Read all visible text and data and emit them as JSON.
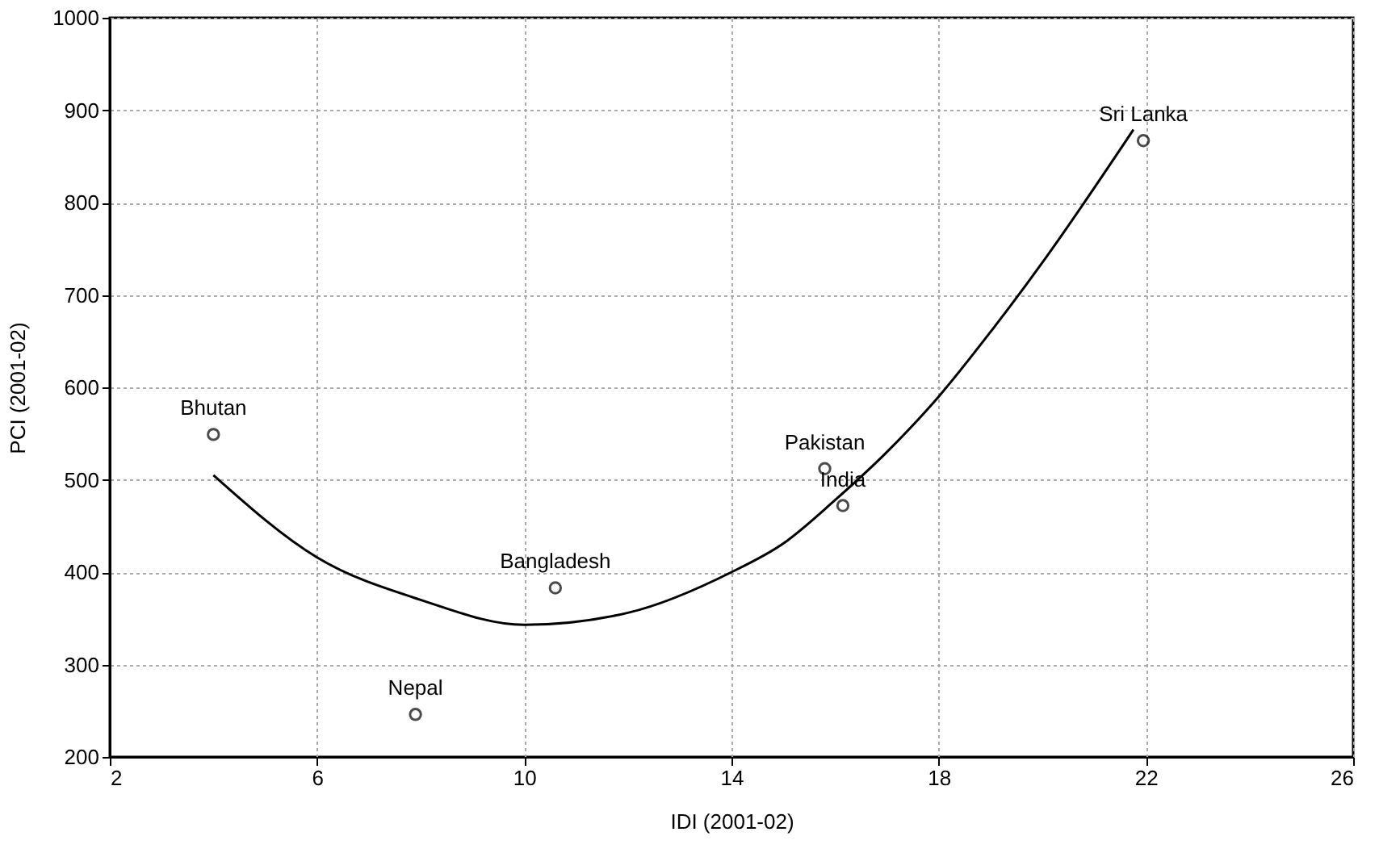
{
  "chart_data": {
    "type": "scatter",
    "xlabel": "IDI (2001-02)",
    "ylabel": "PCI (2001-02)",
    "xlim": [
      2,
      26
    ],
    "xticks": [
      2,
      6,
      10,
      14,
      18,
      22,
      26
    ],
    "ylim": [
      200,
      1000
    ],
    "yticks": [
      200,
      300,
      400,
      500,
      600,
      700,
      800,
      900,
      1000
    ],
    "grid": true,
    "series": [
      {
        "color": "#000000",
        "marker": "circle",
        "x": [
          4.0,
          7.9,
          10.6,
          15.8,
          16.15,
          21.95
        ],
        "values": [
          549,
          246,
          383,
          512,
          472,
          867
        ]
      },
      {
        "type": "line",
        "color": "#000000",
        "marker": "none",
        "x": [
          4,
          6,
          8,
          10,
          12,
          14,
          15,
          16,
          17,
          18,
          19,
          20,
          21.76
        ],
        "values": [
          505,
          416,
          370,
          343,
          356,
          400,
          431,
          478,
          530,
          590,
          660,
          735,
          879
        ]
      }
    ],
    "annotations": [
      {
        "text": "Bhutan",
        "x": 4.0,
        "y": 549
      },
      {
        "text": "Nepal",
        "x": 7.9,
        "y": 246
      },
      {
        "text": "Bangladesh",
        "x": 10.6,
        "y": 383
      },
      {
        "text": "Pakistan",
        "x": 15.8,
        "y": 512
      },
      {
        "text": "India",
        "x": 16.15,
        "y": 472
      },
      {
        "text": "Sri Lanka",
        "x": 21.95,
        "y": 867
      }
    ]
  }
}
